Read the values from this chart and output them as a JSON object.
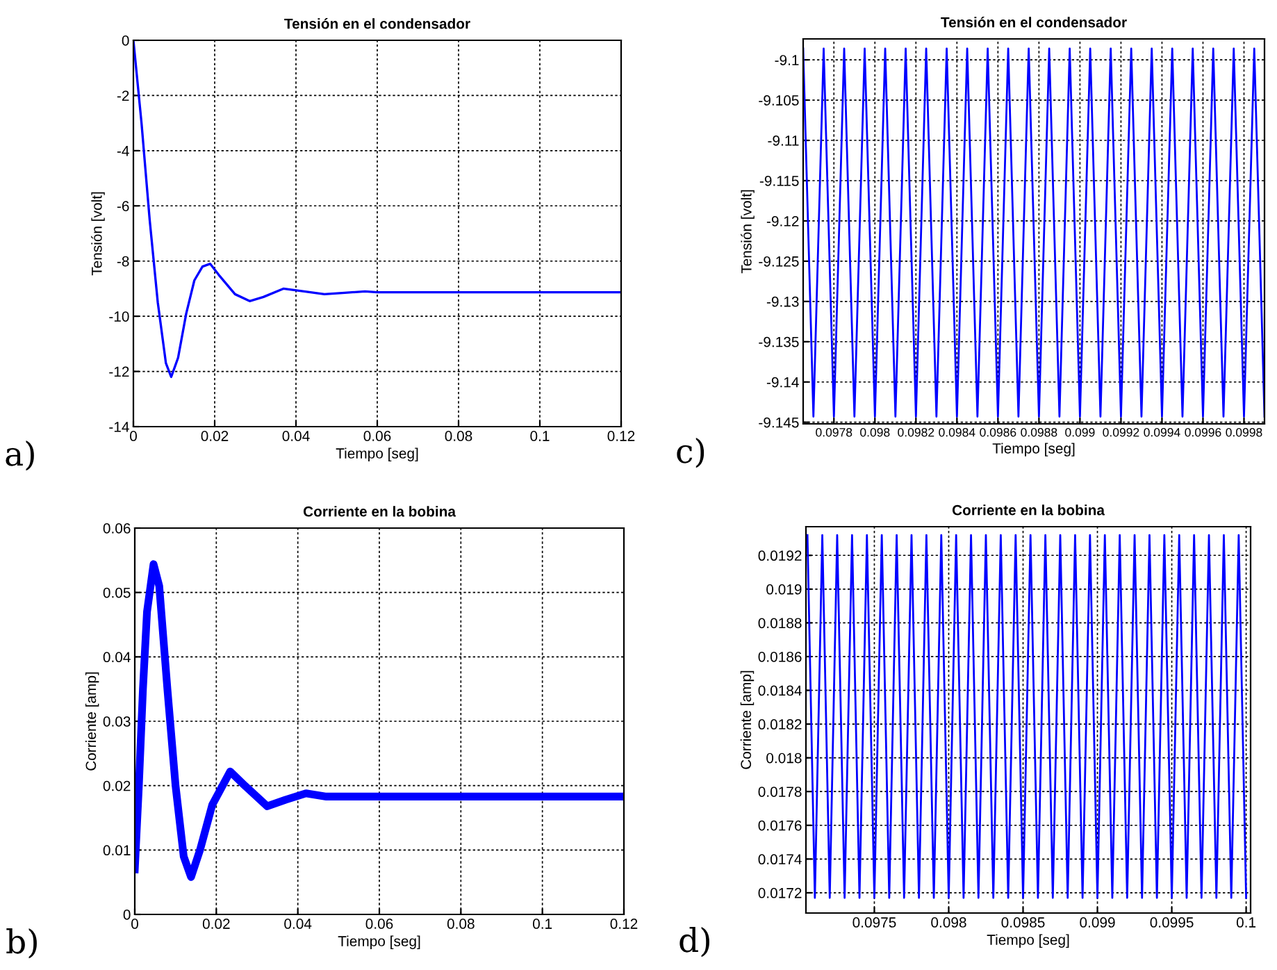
{
  "chart_data": [
    {
      "type": "line",
      "title": "Tensión en el condensador",
      "xlabel": "Tiempo [seg]",
      "ylabel": "Tensión [volt]",
      "xlim": [
        0,
        0.12
      ],
      "ylim": [
        -14,
        0
      ],
      "xticks": [
        0,
        0.02,
        0.04,
        0.06,
        0.08,
        0.1,
        0.12
      ],
      "yticks": [
        -14,
        -12,
        -10,
        -8,
        -6,
        -4,
        -2,
        0
      ],
      "grid": true,
      "annotations": [
        "a)"
      ],
      "series": [
        {
          "color": "#0000ff",
          "x": [
            0,
            0.002,
            0.004,
            0.006,
            0.008,
            0.0093,
            0.011,
            0.013,
            0.015,
            0.017,
            0.0189,
            0.021,
            0.025,
            0.0286,
            0.032,
            0.0369,
            0.042,
            0.047,
            0.052,
            0.057,
            0.06,
            0.12
          ],
          "values": [
            0,
            -3,
            -6.5,
            -9.5,
            -11.7,
            -12.2,
            -11.5,
            -9.9,
            -8.7,
            -8.2,
            -8.1,
            -8.5,
            -9.2,
            -9.45,
            -9.3,
            -9.0,
            -9.1,
            -9.2,
            -9.15,
            -9.1,
            -9.13,
            -9.13
          ]
        }
      ]
    },
    {
      "type": "line",
      "title": "Tensión en el condensador",
      "xlabel": "Tiempo [seg]",
      "ylabel": "Tensión [volt]",
      "xlim": [
        0.09765,
        0.0999
      ],
      "ylim": [
        -9.1452,
        -9.0974
      ],
      "xticks": [
        0.0978,
        0.098,
        0.0982,
        0.0984,
        0.0986,
        0.0988,
        0.099,
        0.0992,
        0.0994,
        0.0996,
        0.0998
      ],
      "yticks": [
        -9.145,
        -9.14,
        -9.135,
        -9.13,
        -9.125,
        -9.12,
        -9.115,
        -9.11,
        -9.105,
        -9.1
      ],
      "grid": true,
      "annotations": [
        "c)"
      ],
      "series": [
        {
          "color": "#0000ff",
          "x": [
            0.09765,
            0.0977,
            0.09775,
            0.0978,
            0.09785,
            0.0979,
            0.09795,
            0.098,
            0.09805,
            0.0981,
            0.09815,
            0.0982,
            0.09825,
            0.0983,
            0.09835,
            0.0984,
            0.09845,
            0.0985,
            0.09855,
            0.0986,
            0.09865,
            0.0987,
            0.09875,
            0.0988,
            0.09885,
            0.0989,
            0.09895,
            0.099,
            0.09905,
            0.0991,
            0.09915,
            0.0992,
            0.09925,
            0.0993,
            0.09935,
            0.0994,
            0.09945,
            0.0995,
            0.09955,
            0.0996,
            0.09965,
            0.0997,
            0.09975,
            0.0998,
            0.09985,
            0.0999
          ],
          "values": [
            -9.0986,
            -9.1443,
            -9.0986,
            -9.1443,
            -9.0986,
            -9.1443,
            -9.0986,
            -9.1443,
            -9.0986,
            -9.1443,
            -9.0986,
            -9.1443,
            -9.0986,
            -9.1443,
            -9.0986,
            -9.1443,
            -9.0986,
            -9.1443,
            -9.0986,
            -9.1443,
            -9.0986,
            -9.1443,
            -9.0986,
            -9.1443,
            -9.0986,
            -9.1443,
            -9.0986,
            -9.1443,
            -9.0986,
            -9.1443,
            -9.0986,
            -9.1443,
            -9.0986,
            -9.1443,
            -9.0986,
            -9.1443,
            -9.0986,
            -9.1443,
            -9.0986,
            -9.1443,
            -9.0986,
            -9.1443,
            -9.0986,
            -9.1443,
            -9.0986,
            -9.1443
          ]
        }
      ]
    },
    {
      "type": "line",
      "title": "Corriente en la bobina",
      "xlabel": "Tiempo [seg]",
      "ylabel": "Corriente [amp]",
      "xlim": [
        0,
        0.12
      ],
      "ylim": [
        0,
        0.06
      ],
      "xticks": [
        0,
        0.02,
        0.04,
        0.06,
        0.08,
        0.1,
        0.12
      ],
      "yticks": [
        0,
        0.01,
        0.02,
        0.03,
        0.04,
        0.05,
        0.06
      ],
      "grid": true,
      "annotations": [
        "b)"
      ],
      "series": [
        {
          "color": "#0000ff",
          "x": [
            0,
            0.001,
            0.002,
            0.003,
            0.0046,
            0.006,
            0.008,
            0.01,
            0.012,
            0.0138,
            0.016,
            0.019,
            0.0234,
            0.027,
            0.0325,
            0.037,
            0.042,
            0.047,
            0.12
          ],
          "values": [
            0.007,
            0.02,
            0.035,
            0.047,
            0.0544,
            0.051,
            0.035,
            0.02,
            0.009,
            0.0058,
            0.01,
            0.017,
            0.0222,
            0.02,
            0.0168,
            0.0178,
            0.0188,
            0.0183,
            0.0183
          ]
        }
      ]
    },
    {
      "type": "line",
      "title": "Corriente en la bobina",
      "xlabel": "Tiempo [seg]",
      "ylabel": "Corriente [amp]",
      "xlim": [
        0.09704,
        0.10003
      ],
      "ylim": [
        0.01708,
        0.01937
      ],
      "xticks": [
        0.0975,
        0.098,
        0.0985,
        0.099,
        0.0995,
        0.1
      ],
      "yticks": [
        0.0172,
        0.0174,
        0.0176,
        0.0178,
        0.018,
        0.0182,
        0.0184,
        0.0186,
        0.0188,
        0.019,
        0.0192
      ],
      "grid": true,
      "annotations": [
        "d)"
      ],
      "series": [
        {
          "color": "#0000ff",
          "x": [
            0.09705,
            0.0971,
            0.09715,
            0.0972,
            0.09725,
            0.0973,
            0.09735,
            0.0974,
            0.09745,
            0.0975,
            0.09755,
            0.0976,
            0.09765,
            0.0977,
            0.09775,
            0.0978,
            0.09785,
            0.0979,
            0.09795,
            0.098,
            0.09805,
            0.0981,
            0.09815,
            0.0982,
            0.09825,
            0.0983,
            0.09835,
            0.0984,
            0.09845,
            0.0985,
            0.09855,
            0.0986,
            0.09865,
            0.0987,
            0.09875,
            0.0988,
            0.09885,
            0.0989,
            0.09895,
            0.099,
            0.09905,
            0.0991,
            0.09915,
            0.0992,
            0.09925,
            0.0993,
            0.09935,
            0.0994,
            0.09945,
            0.0995,
            0.09955,
            0.0996,
            0.09965,
            0.0997,
            0.09975,
            0.0998,
            0.09985,
            0.0999,
            0.09995,
            0.1
          ],
          "values": [
            0.01932,
            0.01717,
            0.01932,
            0.01717,
            0.01932,
            0.01717,
            0.01932,
            0.01717,
            0.01932,
            0.01717,
            0.01932,
            0.01717,
            0.01932,
            0.01717,
            0.01932,
            0.01717,
            0.01932,
            0.01717,
            0.01932,
            0.01717,
            0.01932,
            0.01717,
            0.01932,
            0.01717,
            0.01932,
            0.01717,
            0.01932,
            0.01717,
            0.01932,
            0.01717,
            0.01932,
            0.01717,
            0.01932,
            0.01717,
            0.01932,
            0.01717,
            0.01932,
            0.01717,
            0.01932,
            0.01717,
            0.01932,
            0.01717,
            0.01932,
            0.01717,
            0.01932,
            0.01717,
            0.01932,
            0.01717,
            0.01932,
            0.01717,
            0.01932,
            0.01717,
            0.01932,
            0.01717,
            0.01932,
            0.01717,
            0.01932,
            0.01717,
            0.01932,
            0.01717
          ]
        }
      ]
    }
  ]
}
